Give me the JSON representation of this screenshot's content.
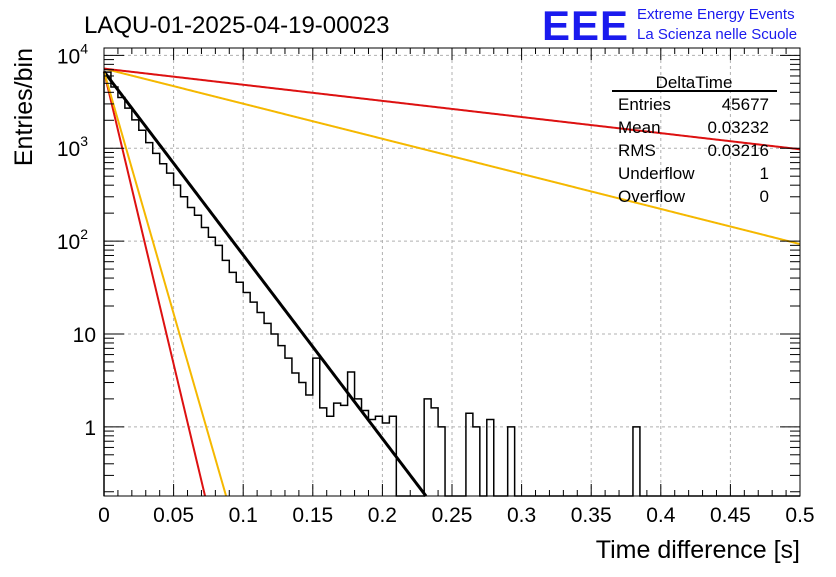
{
  "chart_data": {
    "type": "histogram",
    "title": "LAQU-01-2025-04-19-00023",
    "xlabel": "Time difference [s]",
    "ylabel": "Entries/bin",
    "xlim": [
      0,
      0.5
    ],
    "ylim": [
      0.18,
      12000
    ],
    "yscale": "log",
    "grid": true,
    "x_ticks": [
      0,
      0.05,
      0.1,
      0.15,
      0.2,
      0.25,
      0.3,
      0.35,
      0.4,
      0.45,
      0.5
    ],
    "x_tick_labels": [
      "0",
      "0.05",
      "0.1",
      "0.15",
      "0.2",
      "0.25",
      "0.3",
      "0.35",
      "0.4",
      "0.45",
      "0.5"
    ],
    "y_ticks": [
      1,
      10,
      100,
      1000,
      10000
    ],
    "y_tick_labels": [
      {
        "base": "1",
        "exp": ""
      },
      {
        "base": "10",
        "exp": ""
      },
      {
        "base": "10",
        "exp": "2"
      },
      {
        "base": "10",
        "exp": "3"
      },
      {
        "base": "10",
        "exp": "4"
      }
    ],
    "histogram": {
      "name": "DeltaTime",
      "bin_width": 0.005,
      "x_start": 0,
      "counts": [
        6600,
        4560,
        3520,
        2700,
        2020,
        1560,
        1150,
        880,
        680,
        540,
        400,
        300,
        230,
        190,
        140,
        110,
        90,
        62,
        46,
        36,
        28,
        22,
        17,
        13,
        10,
        7.5,
        5.5,
        3.8,
        3.0,
        2.2,
        5.5,
        1.6,
        1.3,
        1.8,
        1.7,
        3.9,
        2.0,
        1.5,
        1.2,
        1.3,
        1.1,
        1.3,
        0,
        0,
        0,
        0,
        2.0,
        1.6,
        1.0,
        0,
        0,
        0,
        1.4,
        1.0,
        0,
        1.2,
        0,
        0,
        1.0,
        0,
        0,
        0,
        0,
        0,
        0,
        0,
        0,
        0,
        0,
        0,
        0,
        0,
        0,
        0,
        0,
        0,
        1.0,
        0,
        0,
        0,
        0,
        0,
        0,
        0,
        0,
        0,
        0,
        0,
        0,
        0,
        0,
        0,
        0,
        0,
        0,
        0,
        0,
        0,
        0,
        0
      ]
    },
    "series": [
      {
        "name": "fit",
        "color": "#000000",
        "amplitude": 6700,
        "slope": -45.5
      },
      {
        "name": "red-steep",
        "color": "#dd1111",
        "amplitude": 6700,
        "slope": -145
      },
      {
        "name": "yellow-steep",
        "color": "#f5b800",
        "amplitude": 6700,
        "slope": -120
      },
      {
        "name": "yellow-shallow",
        "color": "#f5b800",
        "amplitude": 7200,
        "slope": -8.7
      },
      {
        "name": "red-shallow",
        "color": "#dd1111",
        "amplitude": 7200,
        "slope": -4.0
      }
    ]
  },
  "stats_box": {
    "title": "DeltaTime",
    "rows": [
      {
        "label": "Entries",
        "value": "45677"
      },
      {
        "label": "Mean",
        "value": "0.03232"
      },
      {
        "label": "RMS",
        "value": "0.03216"
      },
      {
        "label": "Underflow",
        "value": "1"
      },
      {
        "label": "Overflow",
        "value": "0"
      }
    ]
  },
  "logo": {
    "text": "EEE",
    "line1": "Extreme Energy Events",
    "line2": "La Scienza nelle Scuole",
    "color": "#1a1aee"
  }
}
